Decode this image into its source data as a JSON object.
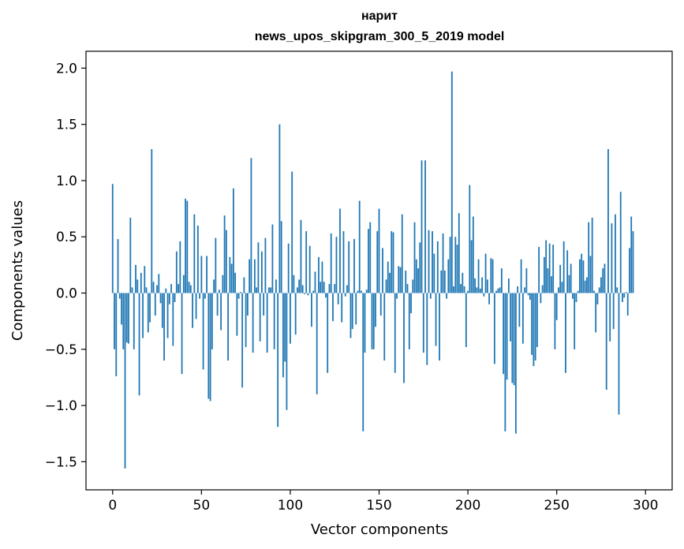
{
  "chart_data": {
    "type": "bar",
    "title": "нарит",
    "subtitle": "news_upos_skipgram_300_5_2019 model",
    "xlabel": "Vector components",
    "ylabel": "Components values",
    "xlim": [
      -15,
      315
    ],
    "ylim": [
      -1.75,
      2.15
    ],
    "xticks": [
      0,
      50,
      100,
      150,
      200,
      250,
      300
    ],
    "yticks": [
      -1.5,
      -1.0,
      -0.5,
      0.0,
      0.5,
      1.0,
      1.5,
      2.0
    ],
    "xtick_labels": [
      "0",
      "50",
      "100",
      "150",
      "200",
      "250",
      "300"
    ],
    "ytick_labels": [
      "−1.5",
      "−1.0",
      "−0.5",
      "0.0",
      "0.5",
      "1.0",
      "1.5",
      "2.0"
    ],
    "grid": false,
    "bar_color": "#1f77b4",
    "values": [
      0.97,
      -0.5,
      -0.74,
      0.48,
      -0.05,
      -0.28,
      -0.5,
      -1.56,
      -0.44,
      -0.45,
      0.67,
      0.05,
      -0.5,
      0.25,
      0.12,
      -0.91,
      0.18,
      -0.4,
      0.24,
      0.05,
      -0.35,
      -0.26,
      1.28,
      0.1,
      -0.2,
      0.07,
      0.17,
      -0.09,
      -0.31,
      -0.6,
      0.04,
      -0.4,
      -0.1,
      0.08,
      -0.47,
      -0.08,
      0.37,
      0.08,
      0.46,
      -0.72,
      0.16,
      0.84,
      0.82,
      0.1,
      0.07,
      -0.31,
      0.7,
      -0.23,
      0.6,
      -0.05,
      0.33,
      -0.68,
      -0.05,
      0.33,
      -0.94,
      -0.96,
      -0.5,
      0.12,
      0.49,
      -0.2,
      0.03,
      -0.33,
      0.16,
      0.69,
      0.56,
      -0.6,
      0.32,
      0.26,
      0.93,
      0.18,
      -0.38,
      -0.05,
      0.01,
      -0.84,
      0.14,
      -0.48,
      -0.2,
      0.3,
      1.2,
      -0.53,
      0.3,
      0.05,
      0.45,
      -0.43,
      0.37,
      -0.2,
      0.49,
      -0.53,
      0.05,
      0.05,
      0.61,
      -0.5,
      0.12,
      -1.19,
      1.5,
      0.64,
      -0.75,
      -0.61,
      -1.04,
      0.44,
      -0.45,
      1.08,
      0.16,
      -0.37,
      0.05,
      0.12,
      0.65,
      0.07,
      -0.01,
      0.55,
      -0.02,
      0.42,
      -0.3,
      0.02,
      0.19,
      -0.9,
      0.32,
      0.1,
      0.28,
      0.1,
      -0.04,
      -0.71,
      0.08,
      0.53,
      -0.25,
      0.08,
      0.5,
      -0.1,
      0.75,
      -0.26,
      0.55,
      -0.03,
      0.07,
      0.46,
      -0.4,
      -0.32,
      0.48,
      -0.28,
      0.02,
      0.82,
      0.02,
      -1.23,
      -0.53,
      0.03,
      0.57,
      0.63,
      -0.5,
      -0.5,
      -0.3,
      0.55,
      0.75,
      -0.2,
      0.4,
      -0.6,
      0.12,
      0.28,
      0.18,
      0.55,
      0.54,
      -0.71,
      -0.05,
      0.24,
      0.23,
      0.7,
      -0.8,
      0.2,
      0.08,
      -0.5,
      -0.18,
      0.12,
      0.63,
      0.3,
      0.22,
      0.45,
      1.18,
      -0.53,
      1.18,
      -0.64,
      0.56,
      -0.05,
      0.55,
      0.35,
      -0.47,
      0.46,
      -0.6,
      0.2,
      0.53,
      0.2,
      -0.05,
      0.3,
      0.5,
      1.97,
      0.06,
      0.5,
      0.43,
      0.71,
      0.08,
      0.18,
      0.06,
      -0.48,
      0.02,
      0.96,
      0.47,
      0.68,
      0.13,
      0.05,
      0.3,
      0.04,
      0.14,
      -0.03,
      0.35,
      0.12,
      -0.1,
      0.31,
      0.3,
      -0.63,
      0.02,
      0.04,
      0.05,
      0.22,
      -0.72,
      -1.23,
      -0.77,
      0.13,
      -0.43,
      -0.8,
      -0.82,
      -1.25,
      0.06,
      -0.3,
      0.3,
      -0.45,
      0.05,
      0.22,
      -0.02,
      -0.06,
      -0.55,
      -0.65,
      -0.6,
      -0.48,
      0.41,
      -0.09,
      0.07,
      0.32,
      0.47,
      0.22,
      0.44,
      0.15,
      0.43,
      -0.5,
      -0.24,
      0.05,
      0.25,
      0.1,
      0.46,
      -0.71,
      0.38,
      0.16,
      0.26,
      -0.05,
      -0.5,
      -0.08,
      0.02,
      0.3,
      0.35,
      0.29,
      0.11,
      0.14,
      0.63,
      0.33,
      0.67,
      0.02,
      -0.35,
      -0.1,
      0.05,
      0.14,
      0.22,
      0.26,
      -0.86,
      1.28,
      -0.43,
      0.62,
      -0.32,
      0.7,
      0.05,
      -1.08,
      0.9,
      -0.08,
      -0.04,
      0.01,
      -0.2,
      0.4,
      0.68,
      0.55
    ]
  }
}
